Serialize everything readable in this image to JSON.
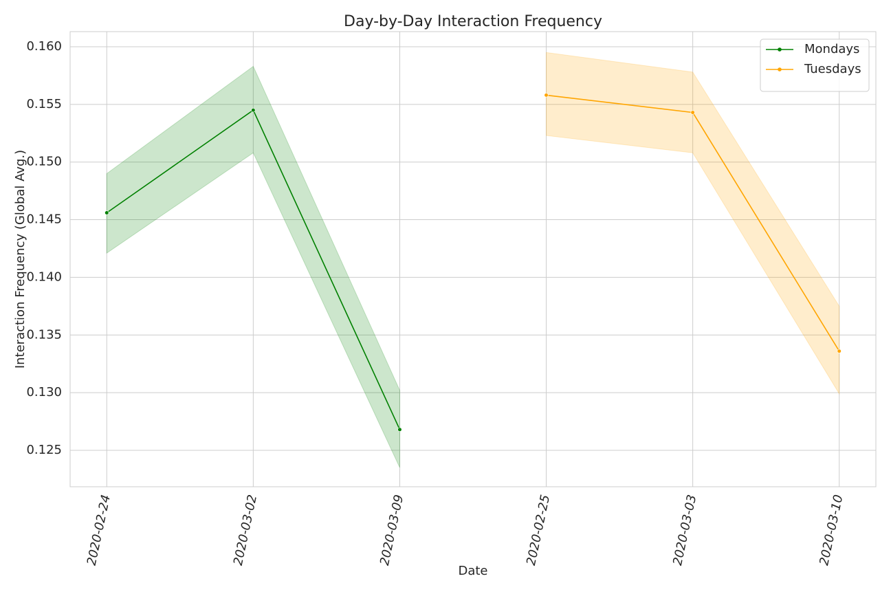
{
  "chart_data": {
    "type": "line",
    "title": "Day-by-Day Interaction Frequency",
    "x_label": "Date",
    "y_label": "Interaction Frequency (Global Avg.)",
    "categories": [
      "2020-02-24",
      "2020-03-02",
      "2020-03-09",
      "2020-02-25",
      "2020-03-03",
      "2020-03-10"
    ],
    "series": [
      {
        "name": "Mondays",
        "color": "#008000",
        "values": [
          0.1456,
          0.1545,
          0.1268,
          null,
          null,
          null
        ],
        "lower": [
          0.1421,
          0.1508,
          0.1235,
          null,
          null,
          null
        ],
        "upper": [
          0.149,
          0.1583,
          0.1302,
          null,
          null,
          null
        ]
      },
      {
        "name": "Tuesdays",
        "color": "#ffa500",
        "values": [
          null,
          null,
          null,
          0.1558,
          0.1543,
          0.1336
        ],
        "lower": [
          null,
          null,
          null,
          0.1523,
          0.1508,
          0.1299
        ],
        "upper": [
          null,
          null,
          null,
          0.1595,
          0.1578,
          0.1375
        ]
      }
    ],
    "ylim": [
      0.12184,
      0.16131
    ],
    "yticks": [
      0.125,
      {
        "value": 0.13,
        "label": "0.130"
      },
      0.135,
      {
        "value": 0.14,
        "label": "0.140"
      },
      0.145,
      {
        "value": 0.15,
        "label": "0.150"
      },
      0.155,
      {
        "value": 0.16,
        "label": "0.160"
      }
    ],
    "grid": true,
    "legend": "upper right"
  }
}
